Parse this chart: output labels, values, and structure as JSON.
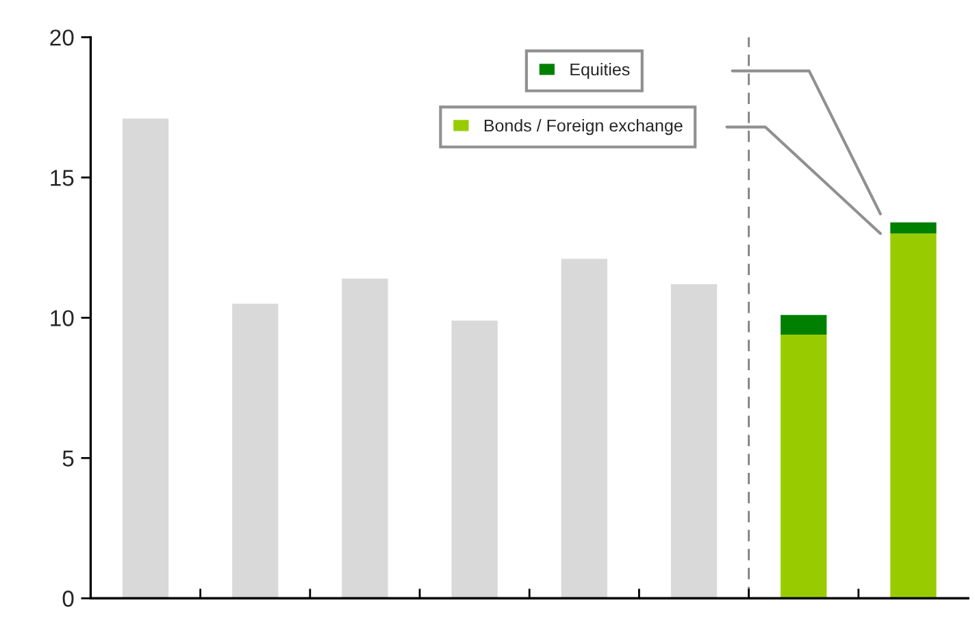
{
  "chart_data": {
    "type": "bar",
    "stacked": true,
    "categories": [
      null,
      null,
      null,
      null,
      null,
      null,
      null,
      null
    ],
    "series": [
      {
        "color": "#d9d9d9",
        "values": [
          17.1,
          10.5,
          11.4,
          9.9,
          12.1,
          11.2,
          null,
          null
        ]
      },
      {
        "name": "Bonds / Foreign exchange",
        "color": "#99cc00",
        "values": [
          null,
          null,
          null,
          null,
          null,
          null,
          9.4,
          13.0
        ]
      },
      {
        "name": "Equities",
        "color": "#008000",
        "values": [
          null,
          null,
          null,
          null,
          null,
          null,
          0.7,
          0.4
        ]
      }
    ],
    "ylim": [
      0,
      20
    ],
    "yticks": [
      0,
      5,
      10,
      15,
      20
    ],
    "tick_labels": "y",
    "grid": false,
    "legend": "top right"
  }
}
